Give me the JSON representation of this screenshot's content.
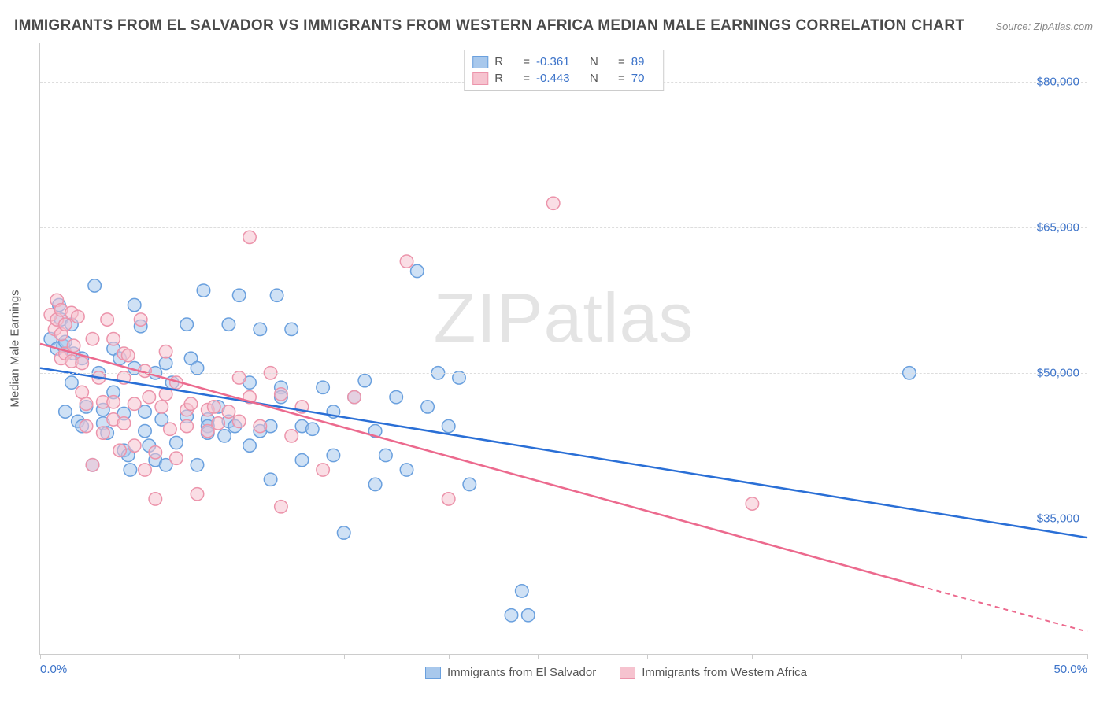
{
  "title": "IMMIGRANTS FROM EL SALVADOR VS IMMIGRANTS FROM WESTERN AFRICA MEDIAN MALE EARNINGS CORRELATION CHART",
  "source_prefix": "Source: ",
  "source_text": "ZipAtlas.com",
  "watermark": "ZIPatlas",
  "yaxis_title": "Median Male Earnings",
  "chart": {
    "type": "scatter",
    "xlim": [
      0,
      50
    ],
    "ylim": [
      21000,
      84000
    ],
    "xtick_positions_pct": [
      0,
      9,
      19,
      29,
      39,
      47.5,
      58,
      68,
      78,
      88,
      100
    ],
    "xlabels": {
      "start": "0.0%",
      "end": "50.0%"
    },
    "yticks": [
      {
        "v": 35000,
        "label": "$35,000"
      },
      {
        "v": 50000,
        "label": "$50,000"
      },
      {
        "v": 65000,
        "label": "$65,000"
      },
      {
        "v": 80000,
        "label": "$80,000"
      }
    ],
    "colors": {
      "blue_fill": "#a8c8ec",
      "blue_stroke": "#6aa0de",
      "blue_line": "#2a6fd6",
      "pink_fill": "#f6c3cf",
      "pink_stroke": "#ec94ab",
      "pink_line": "#ec6a8e",
      "ytick_text": "#3c73c9",
      "grid": "#dddddd",
      "axis": "#cccccc",
      "title_text": "#4a4a4a",
      "body_text": "#555555",
      "background": "#ffffff"
    },
    "marker_radius": 8,
    "line_width": 2.5,
    "series": [
      {
        "key": "el_salvador",
        "label": "Immigrants from El Salvador",
        "color_fill": "#a8c8ec",
        "color_stroke": "#6aa0de",
        "trend_color": "#2a6fd6",
        "R": "-0.361",
        "N": "89",
        "trend": {
          "x1": 0,
          "y1": 50500,
          "x2": 50,
          "y2": 33000
        },
        "points": [
          [
            0.5,
            53500
          ],
          [
            0.8,
            52500
          ],
          [
            0.9,
            57000
          ],
          [
            1.0,
            55500
          ],
          [
            1.1,
            52800
          ],
          [
            1.2,
            53200
          ],
          [
            1.2,
            46000
          ],
          [
            1.5,
            55000
          ],
          [
            1.5,
            49000
          ],
          [
            1.6,
            52000
          ],
          [
            1.8,
            45000
          ],
          [
            2.0,
            44500
          ],
          [
            2.0,
            51500
          ],
          [
            2.2,
            46500
          ],
          [
            2.5,
            40500
          ],
          [
            2.6,
            59000
          ],
          [
            2.8,
            50000
          ],
          [
            3.0,
            44800
          ],
          [
            3.0,
            46200
          ],
          [
            3.2,
            43800
          ],
          [
            3.5,
            48000
          ],
          [
            3.5,
            52500
          ],
          [
            3.8,
            51500
          ],
          [
            4.0,
            42000
          ],
          [
            4.0,
            45800
          ],
          [
            4.2,
            41500
          ],
          [
            4.3,
            40000
          ],
          [
            4.5,
            57000
          ],
          [
            4.5,
            50500
          ],
          [
            4.8,
            54800
          ],
          [
            5.0,
            44000
          ],
          [
            5.0,
            46000
          ],
          [
            5.2,
            42500
          ],
          [
            5.5,
            41000
          ],
          [
            5.5,
            50000
          ],
          [
            5.8,
            45200
          ],
          [
            6.0,
            40500
          ],
          [
            6.0,
            51000
          ],
          [
            6.3,
            49000
          ],
          [
            6.5,
            42800
          ],
          [
            7.0,
            45500
          ],
          [
            7.0,
            55000
          ],
          [
            7.2,
            51500
          ],
          [
            7.5,
            40500
          ],
          [
            7.5,
            50500
          ],
          [
            7.8,
            58500
          ],
          [
            8.0,
            45200
          ],
          [
            8.0,
            44500
          ],
          [
            8.0,
            43800
          ],
          [
            8.5,
            46500
          ],
          [
            8.8,
            43500
          ],
          [
            9.0,
            45000
          ],
          [
            9.0,
            55000
          ],
          [
            9.3,
            44500
          ],
          [
            9.5,
            58000
          ],
          [
            10.0,
            49000
          ],
          [
            10.0,
            42500
          ],
          [
            10.5,
            44000
          ],
          [
            10.5,
            54500
          ],
          [
            11.0,
            39000
          ],
          [
            11.0,
            44500
          ],
          [
            11.3,
            58000
          ],
          [
            11.5,
            48500
          ],
          [
            11.5,
            47500
          ],
          [
            12.0,
            54500
          ],
          [
            12.5,
            41000
          ],
          [
            12.5,
            44500
          ],
          [
            13.0,
            44200
          ],
          [
            13.5,
            48500
          ],
          [
            14.0,
            41500
          ],
          [
            14.0,
            46000
          ],
          [
            14.5,
            33500
          ],
          [
            15.0,
            47500
          ],
          [
            15.5,
            49200
          ],
          [
            16.0,
            44000
          ],
          [
            16.0,
            38500
          ],
          [
            16.5,
            41500
          ],
          [
            17.0,
            47500
          ],
          [
            17.5,
            40000
          ],
          [
            18.0,
            60500
          ],
          [
            18.5,
            46500
          ],
          [
            19.0,
            50000
          ],
          [
            19.5,
            44500
          ],
          [
            20.0,
            49500
          ],
          [
            20.5,
            38500
          ],
          [
            23.0,
            27500
          ],
          [
            22.5,
            25000
          ],
          [
            23.3,
            25000
          ],
          [
            41.5,
            50000
          ]
        ]
      },
      {
        "key": "western_africa",
        "label": "Immigrants from Western Africa",
        "color_fill": "#f6c3cf",
        "color_stroke": "#ec94ab",
        "trend_color": "#ec6a8e",
        "R": "-0.443",
        "N": "70",
        "trend": {
          "x1": 0,
          "y1": 53000,
          "x2": 42,
          "y2": 28000
        },
        "trend_ext": {
          "x1": 42,
          "y1": 28000,
          "x2": 50,
          "y2": 23300
        },
        "points": [
          [
            0.5,
            56000
          ],
          [
            0.7,
            54500
          ],
          [
            0.8,
            55500
          ],
          [
            0.8,
            57500
          ],
          [
            1.0,
            56500
          ],
          [
            1.0,
            54000
          ],
          [
            1.0,
            51500
          ],
          [
            1.2,
            55000
          ],
          [
            1.2,
            52000
          ],
          [
            1.5,
            56200
          ],
          [
            1.5,
            51200
          ],
          [
            1.6,
            52800
          ],
          [
            1.8,
            55800
          ],
          [
            2.0,
            51000
          ],
          [
            2.0,
            48000
          ],
          [
            2.2,
            44500
          ],
          [
            2.2,
            46800
          ],
          [
            2.5,
            53500
          ],
          [
            2.5,
            40500
          ],
          [
            2.8,
            49500
          ],
          [
            3.0,
            47000
          ],
          [
            3.0,
            43800
          ],
          [
            3.2,
            55500
          ],
          [
            3.5,
            53500
          ],
          [
            3.5,
            47000
          ],
          [
            3.5,
            45200
          ],
          [
            3.8,
            42000
          ],
          [
            4.0,
            52000
          ],
          [
            4.0,
            49500
          ],
          [
            4.0,
            44800
          ],
          [
            4.2,
            51800
          ],
          [
            4.5,
            46800
          ],
          [
            4.5,
            42500
          ],
          [
            4.8,
            55500
          ],
          [
            5.0,
            50200
          ],
          [
            5.0,
            40000
          ],
          [
            5.2,
            47500
          ],
          [
            5.5,
            41800
          ],
          [
            5.5,
            37000
          ],
          [
            5.8,
            46500
          ],
          [
            6.0,
            52200
          ],
          [
            6.0,
            47800
          ],
          [
            6.2,
            44200
          ],
          [
            6.5,
            41200
          ],
          [
            6.5,
            49000
          ],
          [
            7.0,
            44500
          ],
          [
            7.0,
            46200
          ],
          [
            7.2,
            46800
          ],
          [
            7.5,
            37500
          ],
          [
            8.0,
            46200
          ],
          [
            8.0,
            44000
          ],
          [
            8.3,
            46500
          ],
          [
            8.5,
            44800
          ],
          [
            9.0,
            46000
          ],
          [
            9.5,
            49500
          ],
          [
            9.5,
            45000
          ],
          [
            10.0,
            64000
          ],
          [
            10.0,
            47500
          ],
          [
            10.5,
            44500
          ],
          [
            11.0,
            50000
          ],
          [
            11.5,
            47800
          ],
          [
            11.5,
            36200
          ],
          [
            12.0,
            43500
          ],
          [
            12.5,
            46500
          ],
          [
            13.5,
            40000
          ],
          [
            15.0,
            47500
          ],
          [
            17.5,
            61500
          ],
          [
            19.5,
            37000
          ],
          [
            24.5,
            67500
          ],
          [
            34.0,
            36500
          ]
        ]
      }
    ]
  }
}
